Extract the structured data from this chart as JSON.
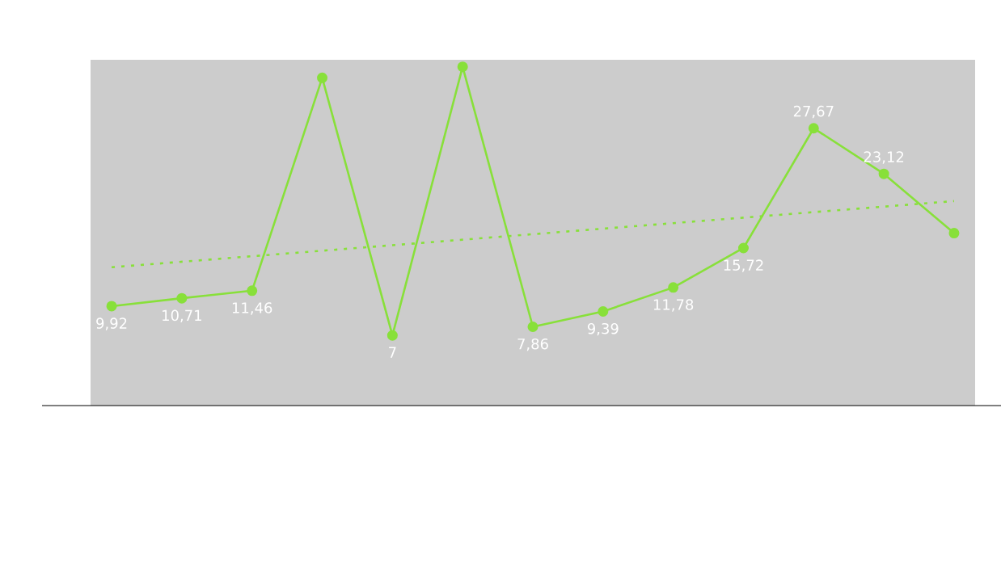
{
  "chart_data": {
    "type": "line",
    "categories": [
      null,
      null,
      null,
      null,
      null,
      null,
      null,
      null,
      null,
      null,
      null,
      null,
      null
    ],
    "ylim": [
      0,
      34.5
    ],
    "series": [
      {
        "color": "#88e03a",
        "marker": "circle",
        "line_style": "solid",
        "values": [
          9.92,
          10.71,
          11.46,
          32.7,
          7,
          33.8,
          7.86,
          9.39,
          11.78,
          15.72,
          27.67,
          23.12,
          17.2
        ],
        "value_labels": [
          "9,92",
          "10,71",
          "11,46",
          null,
          "7",
          null,
          "7,86",
          "9,39",
          "11,78",
          "15,72",
          "27,67",
          "23,12",
          null
        ]
      },
      {
        "type": "line",
        "color": "#88e03a",
        "marker": "none",
        "line_style": "dotted",
        "values": [
          13.8,
          null,
          null,
          null,
          null,
          null,
          null,
          null,
          null,
          null,
          null,
          null,
          20.4
        ]
      }
    ]
  }
}
